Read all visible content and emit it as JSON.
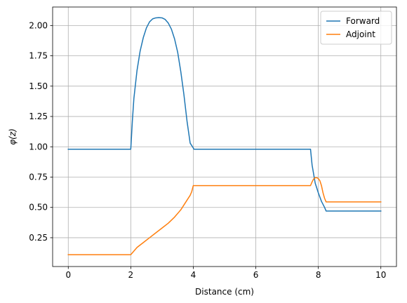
{
  "chart_data": {
    "type": "line",
    "title": "",
    "xlabel": "Distance (cm)",
    "ylabel": "φ(z)",
    "xlim": [
      -0.5,
      10.5
    ],
    "ylim": [
      0.0125,
      2.1525
    ],
    "xticks": [
      0,
      2,
      4,
      6,
      8,
      10
    ],
    "xtick_labels": [
      "0",
      "2",
      "4",
      "6",
      "8",
      "10"
    ],
    "yticks": [
      0.25,
      0.5,
      0.75,
      1.0,
      1.25,
      1.5,
      1.75,
      2.0
    ],
    "ytick_labels": [
      "0.25",
      "0.50",
      "0.75",
      "1.00",
      "1.25",
      "1.50",
      "1.75",
      "2.00"
    ],
    "grid": true,
    "legend_position": "top-right",
    "series": [
      {
        "name": "Forward",
        "color": "#1f77b4",
        "x": [
          0,
          2,
          2.05,
          2.1,
          2.2,
          2.3,
          2.4,
          2.5,
          2.6,
          2.7,
          2.8,
          2.9,
          3.0,
          3.1,
          3.2,
          3.3,
          3.4,
          3.5,
          3.6,
          3.7,
          3.8,
          3.9,
          4.0,
          4.02,
          7.75,
          7.8,
          7.9,
          8.0,
          8.1,
          8.2,
          8.25,
          10
        ],
        "y": [
          0.98,
          0.98,
          1.21,
          1.4,
          1.63,
          1.79,
          1.9,
          1.98,
          2.03,
          2.055,
          2.063,
          2.065,
          2.063,
          2.05,
          2.02,
          1.97,
          1.89,
          1.78,
          1.62,
          1.43,
          1.21,
          1.03,
          0.99,
          0.98,
          0.98,
          0.85,
          0.7,
          0.62,
          0.55,
          0.5,
          0.47,
          0.47
        ]
      },
      {
        "name": "Adjoint",
        "color": "#ff7f0e",
        "x": [
          0,
          2,
          2.2,
          2.4,
          2.6,
          2.8,
          3.0,
          3.2,
          3.4,
          3.6,
          3.8,
          3.9,
          3.95,
          4.0,
          7.75,
          7.8,
          7.85,
          7.9,
          7.95,
          8.0,
          8.05,
          8.1,
          8.15,
          8.2,
          8.25,
          10
        ],
        "y": [
          0.11,
          0.11,
          0.17,
          0.21,
          0.25,
          0.29,
          0.33,
          0.37,
          0.42,
          0.48,
          0.56,
          0.6,
          0.63,
          0.68,
          0.68,
          0.71,
          0.735,
          0.745,
          0.745,
          0.738,
          0.72,
          0.68,
          0.62,
          0.575,
          0.545,
          0.545
        ]
      }
    ]
  }
}
